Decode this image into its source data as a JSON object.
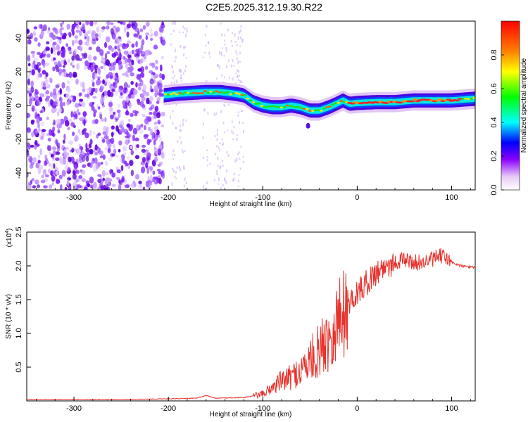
{
  "title": "C2E5.2025.312.19.30.R22",
  "chart_data": [
    {
      "type": "heatmap",
      "xlabel": "Height of straight line (km)",
      "ylabel": "Frequency (Hz)",
      "xlim": [
        -350,
        125
      ],
      "ylim": [
        -50,
        50
      ],
      "x_ticks": [
        "-300",
        "-200",
        "-100",
        "0",
        "100"
      ],
      "y_ticks": [
        "-40",
        "-20",
        "0",
        "20",
        "40"
      ],
      "colorbar": {
        "label": "Normalized spectral amplitude",
        "range": [
          0,
          1
        ],
        "ticks": [
          "0.0",
          "0.2",
          "0.4",
          "0.6",
          "0.8"
        ]
      },
      "ridge": {
        "x": [
          -205,
          -190,
          -175,
          -160,
          -145,
          -130,
          -120,
          -110,
          -100,
          -90,
          -80,
          -70,
          -60,
          -50,
          -40,
          -30,
          -22,
          -15,
          -8,
          0,
          20,
          40,
          60,
          80,
          100,
          125
        ],
        "y": [
          6,
          7,
          7.5,
          8,
          8,
          7,
          6,
          2,
          0,
          -1,
          -1,
          0,
          -1,
          -3,
          -3,
          -1,
          1,
          3,
          1,
          1.5,
          2,
          2,
          3,
          3,
          3,
          4
        ]
      },
      "noise_region_x": [
        -350,
        -205
      ]
    },
    {
      "type": "line",
      "xlabel": "Height of straight line (km)",
      "ylabel": "SNR (10 * v/v)",
      "y_multiplier_label": "(x10",
      "y_multiplier_exp": "4",
      "y_multiplier_close": ")",
      "xlim": [
        -350,
        125
      ],
      "ylim": [
        0,
        2.5
      ],
      "x_ticks": [
        "-300",
        "-200",
        "-100",
        "0",
        "100"
      ],
      "y_ticks": [
        "0.5",
        "1.0",
        "1.5",
        "2.0",
        "2.5"
      ],
      "series": [
        {
          "color": "#e8322c",
          "x": [
            -350,
            -250,
            -200,
            -170,
            -160,
            -150,
            -120,
            -100,
            -90,
            -80,
            -70,
            -60,
            -50,
            -40,
            -30,
            -20,
            -10,
            0,
            10,
            20,
            30,
            40,
            50,
            60,
            70,
            80,
            90,
            100,
            110,
            125
          ],
          "y": [
            0.02,
            0.02,
            0.03,
            0.04,
            0.08,
            0.04,
            0.05,
            0.1,
            0.2,
            0.3,
            0.35,
            0.45,
            0.6,
            0.75,
            0.95,
            1.2,
            1.45,
            1.6,
            1.75,
            1.9,
            2.0,
            2.05,
            2.1,
            2.05,
            2.05,
            2.1,
            2.15,
            2.05,
            2.0,
            1.97
          ]
        }
      ]
    }
  ]
}
